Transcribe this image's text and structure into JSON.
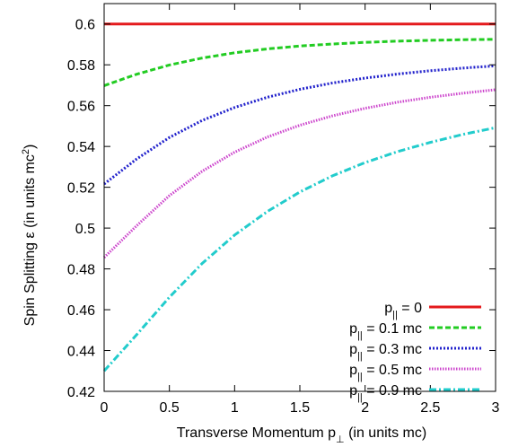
{
  "chart_data": {
    "type": "line",
    "xlabel": {
      "pre": "Transverse Momentum p",
      "sub": "⊥",
      "post": " (in units mc)"
    },
    "ylabel": {
      "pre": "Spin Splitting ε (in units mc",
      "sup": "2",
      "post": ")"
    },
    "xlim": [
      0,
      3
    ],
    "ylim": [
      0.42,
      0.61
    ],
    "xticks": [
      0,
      0.5,
      1,
      1.5,
      2,
      2.5,
      3
    ],
    "xtick_labels": [
      "0",
      "0.5",
      "1",
      "1.5",
      "2",
      "2.5",
      "3"
    ],
    "yticks": [
      0.42,
      0.44,
      0.46,
      0.48,
      0.5,
      0.52,
      0.54,
      0.56,
      0.58,
      0.6
    ],
    "ytick_labels": [
      "0.42",
      "0.44",
      "0.46",
      "0.48",
      "0.5",
      "0.52",
      "0.54",
      "0.56",
      "0.58",
      "0.6"
    ],
    "grid": false,
    "legend_position": "bottom-right",
    "x": [
      0,
      0.25,
      0.5,
      0.75,
      1,
      1.25,
      1.5,
      1.75,
      2,
      2.25,
      2.5,
      2.75,
      3
    ],
    "series": [
      {
        "legend_pre": "p",
        "legend_sub": "||",
        "legend_post": " = 0",
        "color": "#e41a1c",
        "dash": "none",
        "width": 3,
        "values": [
          0.6,
          0.6,
          0.6,
          0.6,
          0.6,
          0.6,
          0.6,
          0.6,
          0.6,
          0.6,
          0.6,
          0.6,
          0.6
        ]
      },
      {
        "legend_pre": "p",
        "legend_sub": "||",
        "legend_post": " = 0.1 mc",
        "color": "#22cc22",
        "dash": "6,3",
        "width": 3,
        "values": [
          0.5698,
          0.5754,
          0.5799,
          0.5833,
          0.5859,
          0.5878,
          0.5892,
          0.5902,
          0.591,
          0.5916,
          0.592,
          0.5923,
          0.5925
        ]
      },
      {
        "legend_pre": "p",
        "legend_sub": "||",
        "legend_post": " = 0.3 mc",
        "color": "#2222cc",
        "dash": "2,2",
        "width": 3,
        "values": [
          0.5216,
          0.5339,
          0.5444,
          0.5527,
          0.5591,
          0.5641,
          0.568,
          0.5711,
          0.5735,
          0.5755,
          0.5771,
          0.5784,
          0.5795
        ]
      },
      {
        "legend_pre": "p",
        "legend_sub": "||",
        "legend_post": " = 0.5 mc",
        "color": "#cc44cc",
        "dash": "1.5,1.5",
        "width": 3,
        "values": [
          0.4856,
          0.5012,
          0.5159,
          0.5278,
          0.5372,
          0.5446,
          0.5504,
          0.555,
          0.5587,
          0.5617,
          0.5641,
          0.5661,
          0.5678
        ]
      },
      {
        "legend_pre": "p",
        "legend_sub": "||",
        "legend_post": " = 0.9 mc",
        "color": "#22cccc",
        "dash": "8,3,2,3",
        "width": 3,
        "values": [
          0.43,
          0.4478,
          0.4661,
          0.4826,
          0.4966,
          0.5081,
          0.5177,
          0.5256,
          0.5321,
          0.5375,
          0.542,
          0.5459,
          0.5492
        ]
      }
    ]
  }
}
